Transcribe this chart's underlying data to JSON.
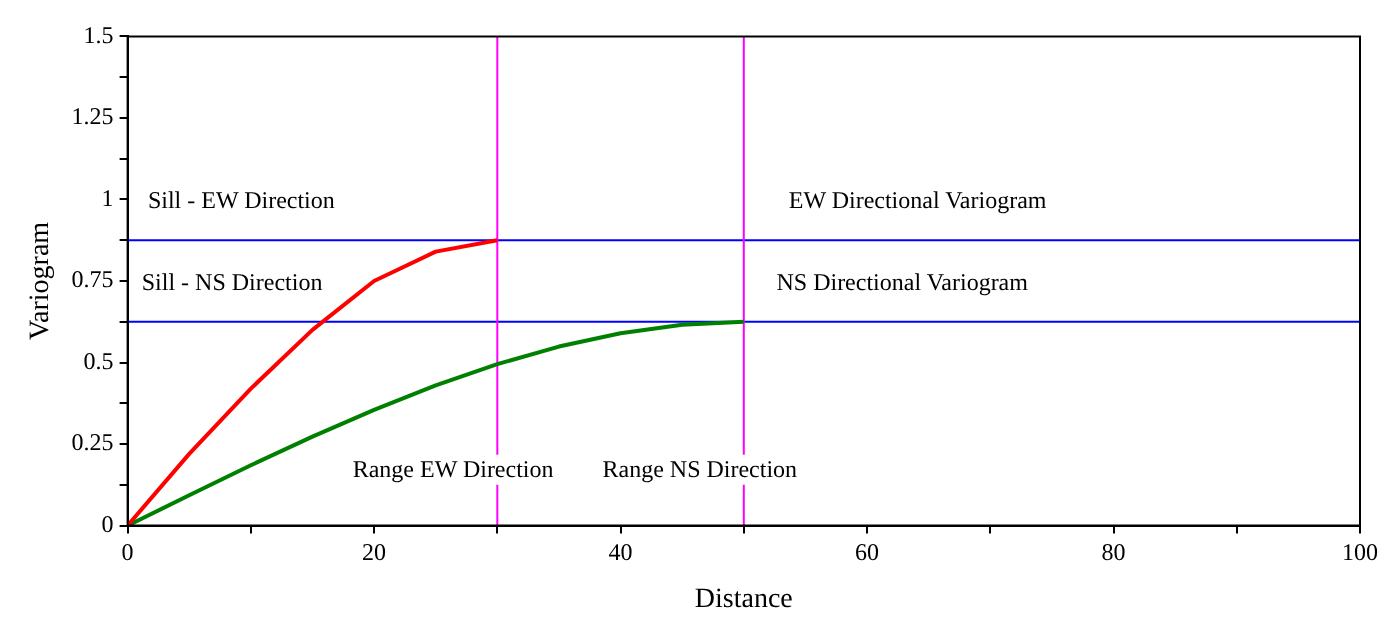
{
  "chart_data": {
    "type": "line",
    "xlabel": "Distance",
    "ylabel": "Variogram",
    "xlim": [
      0,
      100
    ],
    "ylim": [
      0,
      1.5
    ],
    "xticks": [
      0,
      {
        "value": 10,
        "label": null
      },
      20,
      {
        "value": 30,
        "label": null
      },
      40,
      {
        "value": 50,
        "label": null
      },
      60,
      {
        "value": 70,
        "label": null
      },
      80,
      {
        "value": 90,
        "label": null
      },
      100
    ],
    "yticks": [
      0,
      {
        "value": 0.125,
        "label": null
      },
      0.25,
      {
        "value": 0.375,
        "label": null
      },
      0.5,
      {
        "value": 0.625,
        "label": null
      },
      0.75,
      {
        "value": 0.875,
        "label": null
      },
      1,
      {
        "value": 1.125,
        "label": null
      },
      1.25,
      {
        "value": 1.375,
        "label": null
      },
      1.5
    ],
    "grid": false,
    "legend": false,
    "marker": "none",
    "line_style": "solid",
    "series": [
      {
        "color": "#ff0000",
        "x": [
          0,
          5,
          10,
          15,
          20,
          25,
          30
        ],
        "values": [
          0,
          0.22,
          0.42,
          0.6,
          0.75,
          0.84,
          0.875
        ]
      },
      {
        "color": "#008000",
        "x": [
          0,
          5,
          10,
          15,
          20,
          25,
          30,
          35,
          40,
          45,
          50
        ],
        "values": [
          0,
          0.093,
          0.185,
          0.273,
          0.355,
          0.43,
          0.495,
          0.549,
          0.59,
          0.616,
          0.625
        ]
      }
    ],
    "ref_lines": [
      {
        "axis": "y",
        "value": 0.875,
        "color": "#0000ff"
      },
      {
        "axis": "y",
        "value": 0.625,
        "color": "#0000ff"
      },
      {
        "axis": "x",
        "value": 30,
        "color": "#ff00ff"
      },
      {
        "axis": "x",
        "value": 50,
        "color": "#ff00ff"
      }
    ],
    "annotations": [
      {
        "text": "Sill - EW Direction",
        "x": 1,
        "y": 0.875
      },
      {
        "text": "Sill - NS Direction",
        "x": 0.5,
        "y": 0.625
      },
      {
        "text": "EW Directional Variogram",
        "x": 53,
        "y": 0.875
      },
      {
        "text": "NS Directional Variogram",
        "x": 52,
        "y": 0.625
      },
      {
        "text": "Range EW Direction",
        "x": 30,
        "y": 0.15
      },
      {
        "text": "Range NS Direction",
        "x": 50,
        "y": 0.15
      }
    ]
  }
}
